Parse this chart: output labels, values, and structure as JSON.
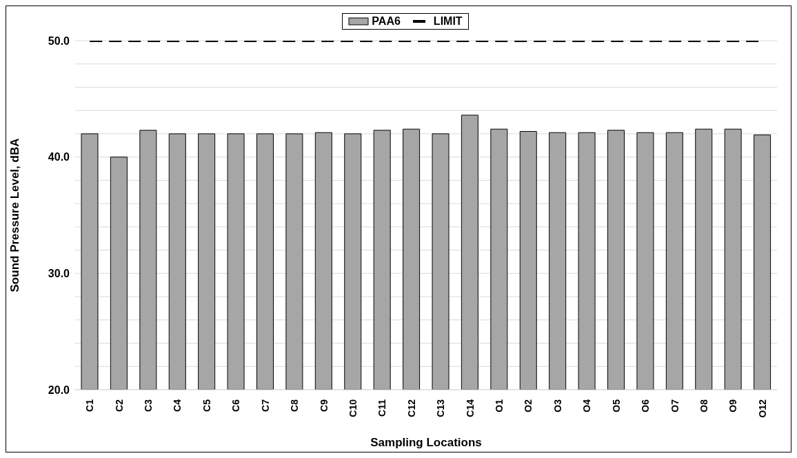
{
  "chart_data": {
    "type": "bar",
    "xlabel": "Sampling Locations",
    "ylabel": "Sound Pressure Level, dBA",
    "categories": [
      "C1",
      "C2",
      "C3",
      "C4",
      "C5",
      "C6",
      "C7",
      "C8",
      "C9",
      "C10",
      "C11",
      "C12",
      "C13",
      "C14",
      "O1",
      "O2",
      "O3",
      "O4",
      "O5",
      "O6",
      "O7",
      "O8",
      "O9",
      "O12"
    ],
    "series": [
      {
        "name": "PAA6",
        "color": "#a6a6a6",
        "values": [
          42.0,
          40.0,
          42.3,
          42.0,
          42.0,
          42.0,
          42.0,
          42.0,
          42.1,
          42.0,
          42.3,
          42.4,
          42.0,
          43.6,
          42.4,
          42.2,
          42.1,
          42.1,
          42.3,
          42.1,
          42.1,
          42.4,
          42.4,
          41.9
        ]
      },
      {
        "name": "LIMIT",
        "type": "line",
        "color": "#000000",
        "line_style": "dashed",
        "values": [
          50,
          50,
          50,
          50,
          50,
          50,
          50,
          50,
          50,
          50,
          50,
          50,
          50,
          50,
          50,
          50,
          50,
          50,
          50,
          50,
          50,
          50,
          50,
          50
        ]
      }
    ],
    "ylim": [
      20,
      50
    ],
    "yticks": [
      {
        "value": 20,
        "label": "20.0"
      },
      {
        "value": 22,
        "label": null
      },
      {
        "value": 24,
        "label": null
      },
      {
        "value": 26,
        "label": null
      },
      {
        "value": 28,
        "label": null
      },
      {
        "value": 30,
        "label": "30.0"
      },
      {
        "value": 32,
        "label": null
      },
      {
        "value": 34,
        "label": null
      },
      {
        "value": 36,
        "label": null
      },
      {
        "value": 38,
        "label": null
      },
      {
        "value": 40,
        "label": "40.0"
      },
      {
        "value": 42,
        "label": null
      },
      {
        "value": 44,
        "label": null
      },
      {
        "value": 46,
        "label": null
      },
      {
        "value": 48,
        "label": null
      },
      {
        "value": 50,
        "label": "50.0"
      }
    ],
    "grid": "y",
    "legend": "top",
    "marker": "none"
  }
}
